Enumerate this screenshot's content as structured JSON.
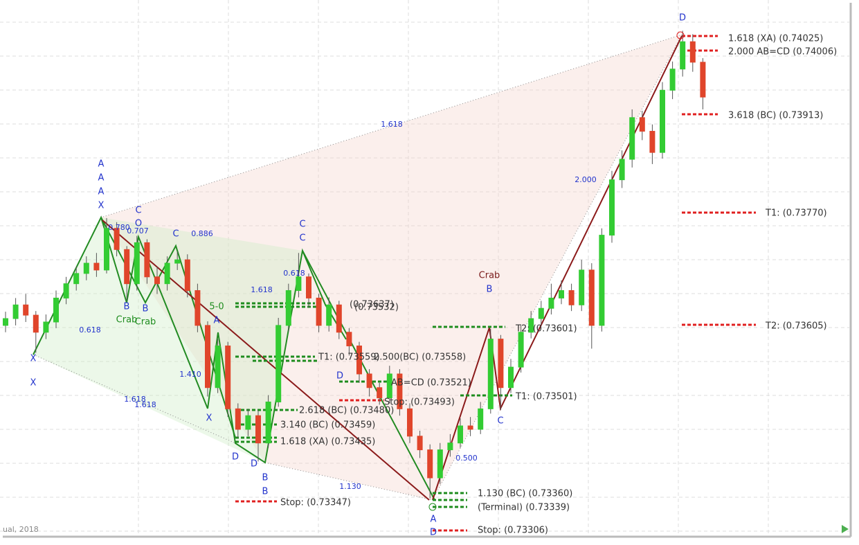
{
  "chart_data": {
    "type": "candlestick",
    "ylim": [
      0.733,
      0.7408
    ],
    "up_color": "#33cc33",
    "down_color": "#e0452b",
    "candles": [
      [
        0.73604,
        0.73624,
        0.73594,
        0.73614
      ],
      [
        0.73614,
        0.73644,
        0.73604,
        0.73634
      ],
      [
        0.73634,
        0.7365,
        0.73609,
        0.73619
      ],
      [
        0.73619,
        0.73625,
        0.73564,
        0.73594
      ],
      [
        0.73594,
        0.7362,
        0.73584,
        0.73609
      ],
      [
        0.73609,
        0.73655,
        0.736,
        0.73644
      ],
      [
        0.73644,
        0.73675,
        0.73635,
        0.73665
      ],
      [
        0.73665,
        0.7369,
        0.73655,
        0.7368
      ],
      [
        0.7368,
        0.73705,
        0.7367,
        0.73695
      ],
      [
        0.73695,
        0.7371,
        0.73675,
        0.73685
      ],
      [
        0.73685,
        0.73761,
        0.7368,
        0.73746
      ],
      [
        0.73746,
        0.73755,
        0.73705,
        0.73715
      ],
      [
        0.73715,
        0.7372,
        0.7364,
        0.73665
      ],
      [
        0.73665,
        0.73735,
        0.73655,
        0.73725
      ],
      [
        0.73725,
        0.7373,
        0.73665,
        0.73675
      ],
      [
        0.73675,
        0.7369,
        0.7365,
        0.73665
      ],
      [
        0.73665,
        0.73705,
        0.73655,
        0.73695
      ],
      [
        0.73695,
        0.73712,
        0.73685,
        0.737
      ],
      [
        0.737,
        0.73708,
        0.73645,
        0.73655
      ],
      [
        0.73655,
        0.73665,
        0.73594,
        0.73604
      ],
      [
        0.73604,
        0.7361,
        0.735,
        0.73513
      ],
      [
        0.73513,
        0.73584,
        0.73505,
        0.73574
      ],
      [
        0.73574,
        0.7358,
        0.7347,
        0.73482
      ],
      [
        0.73482,
        0.7349,
        0.7344,
        0.73452
      ],
      [
        0.73452,
        0.73482,
        0.73442,
        0.73472
      ],
      [
        0.73472,
        0.7348,
        0.73405,
        0.73432
      ],
      [
        0.73432,
        0.73502,
        0.73425,
        0.73492
      ],
      [
        0.73492,
        0.73615,
        0.73485,
        0.73604
      ],
      [
        0.73604,
        0.73665,
        0.73595,
        0.73655
      ],
      [
        0.73655,
        0.7371,
        0.73645,
        0.73675
      ],
      [
        0.73675,
        0.7368,
        0.7363,
        0.73644
      ],
      [
        0.73644,
        0.7365,
        0.73594,
        0.73604
      ],
      [
        0.73604,
        0.73645,
        0.73595,
        0.73634
      ],
      [
        0.73634,
        0.7364,
        0.73584,
        0.73594
      ],
      [
        0.73594,
        0.736,
        0.7356,
        0.73574
      ],
      [
        0.73574,
        0.7358,
        0.7352,
        0.73533
      ],
      [
        0.73533,
        0.7354,
        0.735,
        0.73513
      ],
      [
        0.73513,
        0.7352,
        0.73488,
        0.73498
      ],
      [
        0.73498,
        0.73545,
        0.7349,
        0.73533
      ],
      [
        0.73533,
        0.7354,
        0.73472,
        0.73482
      ],
      [
        0.73482,
        0.7349,
        0.73432,
        0.73442
      ],
      [
        0.73442,
        0.7345,
        0.7341,
        0.73422
      ],
      [
        0.73422,
        0.7343,
        0.73351,
        0.73381
      ],
      [
        0.73381,
        0.73432,
        0.73372,
        0.73422
      ],
      [
        0.73422,
        0.73445,
        0.73412,
        0.73432
      ],
      [
        0.73432,
        0.73468,
        0.73425,
        0.73457
      ],
      [
        0.73457,
        0.7347,
        0.73442,
        0.73452
      ],
      [
        0.73452,
        0.73492,
        0.73445,
        0.73482
      ],
      [
        0.73482,
        0.73599,
        0.73475,
        0.73584
      ],
      [
        0.73584,
        0.7359,
        0.7348,
        0.73513
      ],
      [
        0.73513,
        0.73555,
        0.73505,
        0.73543
      ],
      [
        0.73543,
        0.73604,
        0.73535,
        0.73594
      ],
      [
        0.73594,
        0.73625,
        0.73585,
        0.73614
      ],
      [
        0.73614,
        0.7364,
        0.73605,
        0.73629
      ],
      [
        0.73629,
        0.73665,
        0.7362,
        0.73644
      ],
      [
        0.73644,
        0.7367,
        0.73635,
        0.73655
      ],
      [
        0.73655,
        0.73665,
        0.73625,
        0.73634
      ],
      [
        0.73634,
        0.737,
        0.73625,
        0.73685
      ],
      [
        0.73685,
        0.73695,
        0.7357,
        0.73604
      ],
      [
        0.73604,
        0.73746,
        0.73595,
        0.73736
      ],
      [
        0.73736,
        0.7383,
        0.73725,
        0.73817
      ],
      [
        0.73817,
        0.7386,
        0.73805,
        0.73847
      ],
      [
        0.73847,
        0.7392,
        0.73835,
        0.73908
      ],
      [
        0.73908,
        0.73918,
        0.73875,
        0.73888
      ],
      [
        0.73888,
        0.73898,
        0.7384,
        0.73857
      ],
      [
        0.73857,
        0.7396,
        0.73848,
        0.73948
      ],
      [
        0.73948,
        0.7399,
        0.73935,
        0.73979
      ],
      [
        0.73979,
        0.74035,
        0.73968,
        0.74019
      ],
      [
        0.74019,
        0.7403,
        0.73975,
        0.73989
      ],
      [
        0.73989,
        0.73995,
        0.7392,
        0.73938
      ]
    ],
    "annotations": [
      "D",
      "A",
      "A",
      "A",
      "X",
      "C",
      "O",
      "C",
      "C",
      "C",
      "A",
      "X",
      "X",
      "X",
      "D",
      "D",
      "B",
      "B",
      "B",
      "B",
      "D",
      "A",
      "D",
      "C",
      "B",
      "Crab",
      "Crab",
      "Crab",
      "5-0",
      "1.618",
      "2.000",
      "0.780",
      "0.707",
      "0.886",
      "1.618",
      "0.618",
      "0.618",
      "1.410",
      "1.618",
      "1.618",
      "1.130",
      "0.500",
      "1.618 (XA) (0.74025)",
      "2.000 AB=CD (0.74006)",
      "3.618 (BC) (0.73913)",
      "T1: (0.73770)",
      "T2: (0.73605)",
      "T2: (0.73601)",
      "T1: (0.73501)",
      "1.130 (BC) (0.73360)",
      "(Terminal) (0.73339)",
      "Stop: (0.73306)",
      "(0.73637)",
      "(0.73532)",
      "T1: (0.73559)",
      "2.500(BC) (0.73558)",
      "AB=CD (0.73521)",
      "Stop:  (0.73493)",
      "2.618 (BC) (0.73480)",
      "3.140 (BC) (0.73459)",
      "1.618 (XA) (0.73435)",
      "Stop: (0.73347)"
    ]
  },
  "footer": "ual, 2018"
}
